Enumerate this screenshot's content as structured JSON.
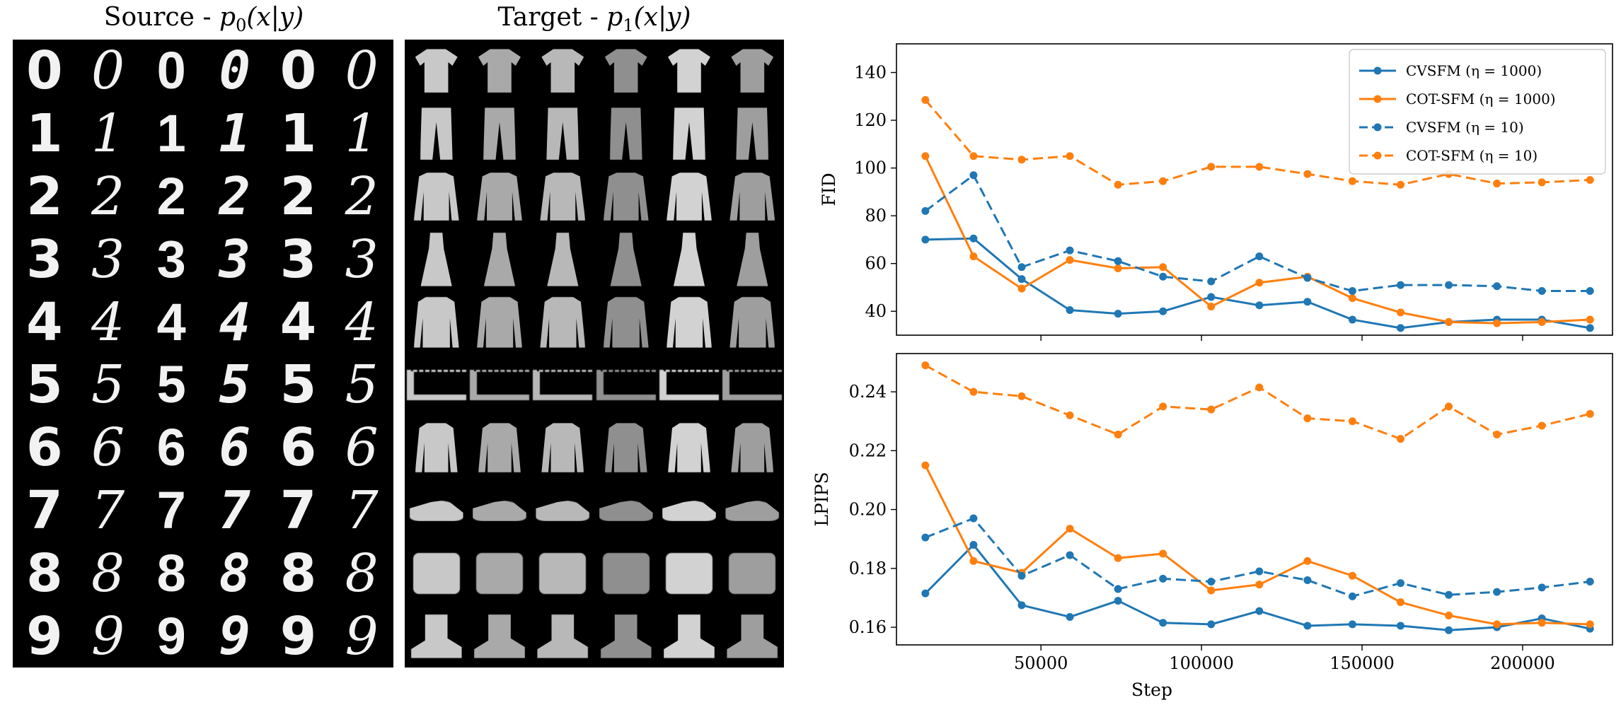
{
  "source_title": {
    "text": "Source - ",
    "func": "p",
    "sub": "0",
    "args": "(x|y)"
  },
  "target_title": {
    "text": "Target - ",
    "func": "p",
    "sub": "1",
    "args": "(x|y)"
  },
  "source_rows": [
    "0",
    "1",
    "2",
    "3",
    "4",
    "5",
    "6",
    "7",
    "8",
    "9"
  ],
  "target_rows": [
    "shirt",
    "trouser",
    "pullover",
    "dress",
    "coat",
    "sandal",
    "shirt2",
    "sneaker",
    "bag",
    "boot"
  ],
  "colors": {
    "blue": "#1f77b4",
    "orange": "#ff7f0e"
  },
  "chart_data": [
    {
      "type": "line",
      "ylabel": "FID",
      "xlabel": "",
      "ylim": [
        30,
        152
      ],
      "xlim": [
        5000,
        228000
      ],
      "yticks": [
        40,
        60,
        80,
        100,
        120,
        140
      ],
      "x": [
        14000,
        29000,
        44000,
        59000,
        74000,
        88000,
        103000,
        118000,
        133000,
        147000,
        162000,
        177000,
        192000,
        206000,
        221000
      ],
      "legend": "top-right",
      "series": [
        {
          "name": "CVSFM (η = 1000)",
          "color": "#1f77b4",
          "dash": false,
          "values": [
            70,
            70.5,
            53.5,
            40.5,
            39,
            40,
            46,
            42.5,
            44,
            36.5,
            33,
            35.5,
            36.5,
            36.5,
            33
          ]
        },
        {
          "name": "COT-SFM (η = 1000)",
          "color": "#ff7f0e",
          "dash": false,
          "values": [
            105,
            63,
            49.5,
            61.5,
            58,
            58.5,
            42,
            52,
            54.5,
            45.5,
            39.5,
            35.5,
            35,
            35.5,
            36.5
          ]
        },
        {
          "name": "CVSFM (η = 10)",
          "color": "#1f77b4",
          "dash": true,
          "values": [
            82,
            97,
            58.5,
            65.5,
            61,
            54.5,
            52.5,
            63,
            54,
            48.5,
            51,
            51,
            50.5,
            48.5,
            48.5
          ]
        },
        {
          "name": "COT-SFM (η = 10)",
          "color": "#ff7f0e",
          "dash": true,
          "values": [
            128.5,
            105,
            103.5,
            105,
            93,
            94.5,
            100.5,
            100.5,
            97.5,
            94.5,
            93,
            97.5,
            93.5,
            94,
            95
          ]
        }
      ]
    },
    {
      "type": "line",
      "ylabel": "LPIPS",
      "xlabel": "Step",
      "ylim": [
        0.154,
        0.253
      ],
      "xlim": [
        5000,
        228000
      ],
      "yticks": [
        0.16,
        0.18,
        0.2,
        0.22,
        0.24
      ],
      "ytick_labels": [
        "0.16",
        "0.18",
        "0.20",
        "0.22",
        "0.24"
      ],
      "xticks": [
        50000,
        100000,
        150000,
        200000
      ],
      "xtick_labels": [
        "50000",
        "100000",
        "150000",
        "200000"
      ],
      "x": [
        14000,
        29000,
        44000,
        59000,
        74000,
        88000,
        103000,
        118000,
        133000,
        147000,
        162000,
        177000,
        192000,
        206000,
        221000
      ],
      "series": [
        {
          "name": "CVSFM (η = 1000)",
          "color": "#1f77b4",
          "dash": false,
          "values": [
            0.1715,
            0.188,
            0.1675,
            0.1635,
            0.169,
            0.1615,
            0.161,
            0.1655,
            0.1605,
            0.161,
            0.1605,
            0.159,
            0.16,
            0.163,
            0.1595
          ]
        },
        {
          "name": "COT-SFM (η = 1000)",
          "color": "#ff7f0e",
          "dash": false,
          "values": [
            0.215,
            0.1825,
            0.1785,
            0.1935,
            0.1835,
            0.185,
            0.1725,
            0.1745,
            0.1825,
            0.1775,
            0.1685,
            0.164,
            0.161,
            0.1615,
            0.161
          ]
        },
        {
          "name": "CVSFM (η = 10)",
          "color": "#1f77b4",
          "dash": true,
          "values": [
            0.1905,
            0.197,
            0.1775,
            0.1845,
            0.173,
            0.1765,
            0.1755,
            0.179,
            0.176,
            0.1705,
            0.175,
            0.171,
            0.172,
            0.1735,
            0.1755
          ]
        },
        {
          "name": "COT-SFM (η = 10)",
          "color": "#ff7f0e",
          "dash": true,
          "values": [
            0.249,
            0.24,
            0.2385,
            0.232,
            0.2255,
            0.235,
            0.234,
            0.2415,
            0.231,
            0.23,
            0.224,
            0.235,
            0.2255,
            0.2285,
            0.2325
          ]
        }
      ]
    }
  ]
}
